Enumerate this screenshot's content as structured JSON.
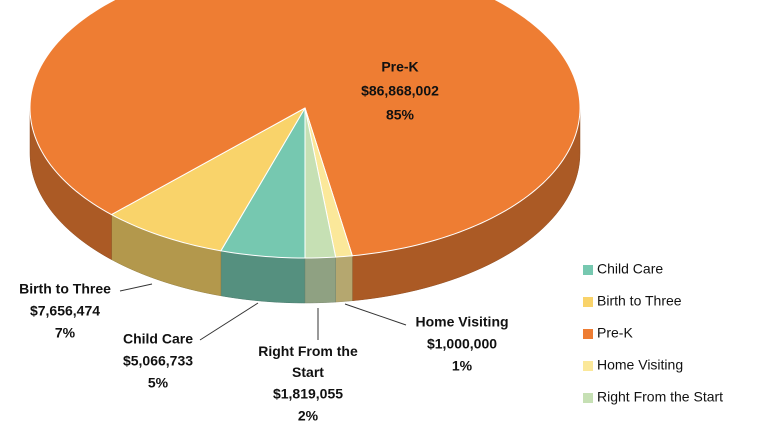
{
  "chart_data": {
    "type": "pie3d",
    "categories": [
      "Child Care",
      "Birth to Three",
      "Pre-K",
      "Home Visiting",
      "Right From the Start"
    ],
    "values": [
      5066733,
      7656474,
      86868002,
      1000000,
      1819055
    ],
    "value_labels": [
      "$5,066,733",
      "$7,656,474",
      "$86,868,002",
      "$1,000,000",
      "$1,819,055"
    ],
    "percent_labels": [
      "5%",
      "7%",
      "85%",
      "1%",
      "2%"
    ],
    "colors": [
      "#76c8b0",
      "#f9d36a",
      "#ee7d33",
      "#fbe89a",
      "#c6e0b4"
    ],
    "legend": "right"
  }
}
